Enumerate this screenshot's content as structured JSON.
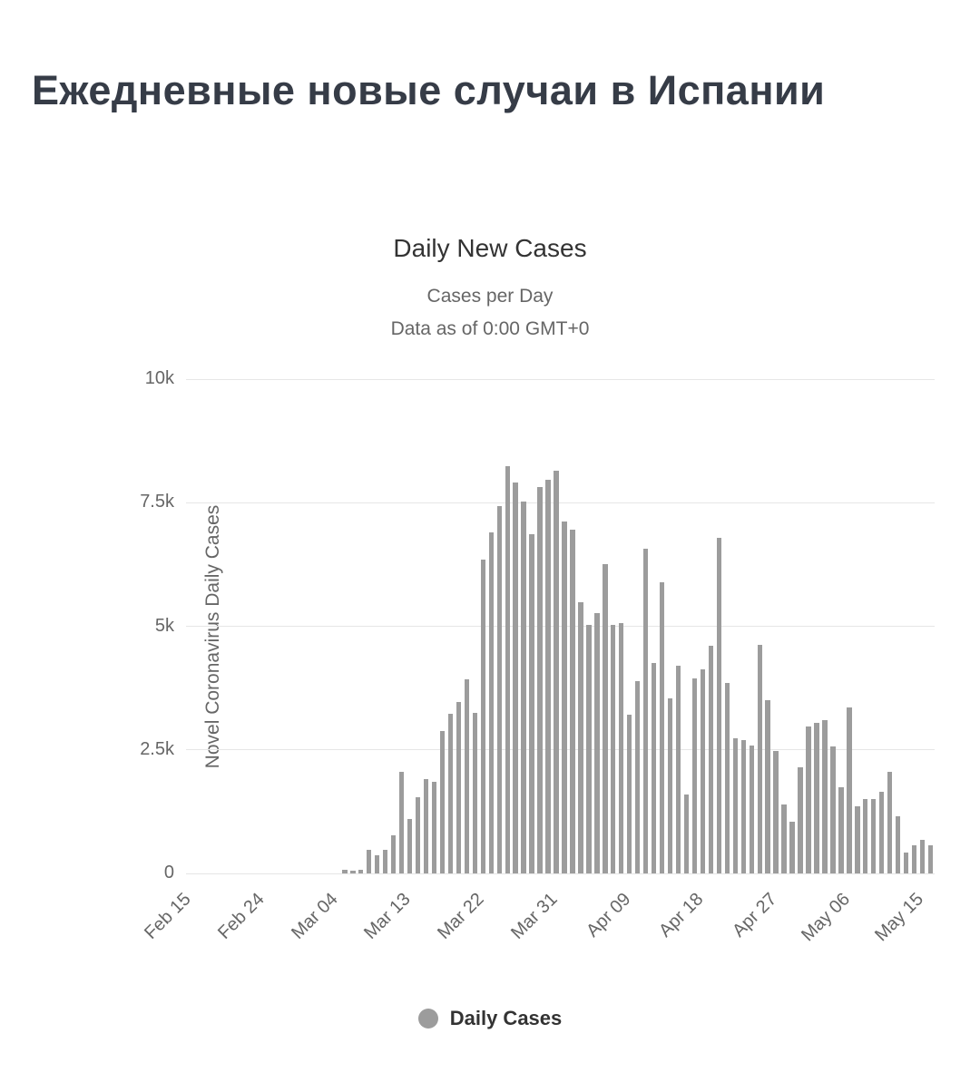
{
  "page": {
    "title": "Ежедневные новые случаи в Испании"
  },
  "chart": {
    "title": "Daily New Cases",
    "subtitle1": "Cases per Day",
    "subtitle2": "Data as of 0:00 GMT+0",
    "y_axis_title": "Novel Coronavirus Daily Cases",
    "legend_label": "Daily Cases"
  },
  "colors": {
    "bar": "#9c9c9c",
    "page_title": "#363c47",
    "chart_title": "#333333",
    "subtitle": "#666666",
    "axis_label": "#666666",
    "gridline": "#e6e6e6",
    "axis_line": "#ccd6eb",
    "legend_text": "#333333"
  },
  "chart_data": {
    "type": "bar",
    "title": "Daily New Cases",
    "subtitle": [
      "Cases per Day",
      "Data as of 0:00 GMT+0"
    ],
    "series_name": "Daily Cases",
    "xlabel": "",
    "ylabel": "Novel Coronavirus Daily Cases",
    "ylim": [
      0,
      10000
    ],
    "grid": true,
    "legend_position": "bottom",
    "bar_color": "#9c9c9c",
    "yticks": [
      {
        "value": 0,
        "label": "0"
      },
      {
        "value": 2500,
        "label": "2.5k"
      },
      {
        "value": 5000,
        "label": "5k"
      },
      {
        "value": 7500,
        "label": "7.5k"
      },
      {
        "value": 10000,
        "label": "10k"
      }
    ],
    "xtick_interval": 9,
    "xtick_labels": [
      "Feb 15",
      "Feb 24",
      "Mar 04",
      "Mar 13",
      "Mar 22",
      "Mar 31",
      "Apr 09",
      "Apr 18",
      "Apr 27",
      "May 06",
      "May 15"
    ],
    "categories": [
      "Feb 15",
      "Feb 16",
      "Feb 17",
      "Feb 18",
      "Feb 19",
      "Feb 20",
      "Feb 21",
      "Feb 22",
      "Feb 23",
      "Feb 24",
      "Feb 25",
      "Feb 26",
      "Feb 27",
      "Feb 28",
      "Feb 29",
      "Mar 01",
      "Mar 02",
      "Mar 03",
      "Mar 04",
      "Mar 05",
      "Mar 06",
      "Mar 07",
      "Mar 08",
      "Mar 09",
      "Mar 10",
      "Mar 11",
      "Mar 12",
      "Mar 13",
      "Mar 14",
      "Mar 15",
      "Mar 16",
      "Mar 17",
      "Mar 18",
      "Mar 19",
      "Mar 20",
      "Mar 21",
      "Mar 22",
      "Mar 23",
      "Mar 24",
      "Mar 25",
      "Mar 26",
      "Mar 27",
      "Mar 28",
      "Mar 29",
      "Mar 30",
      "Mar 31",
      "Apr 01",
      "Apr 02",
      "Apr 03",
      "Apr 04",
      "Apr 05",
      "Apr 06",
      "Apr 07",
      "Apr 08",
      "Apr 09",
      "Apr 10",
      "Apr 11",
      "Apr 12",
      "Apr 13",
      "Apr 14",
      "Apr 15",
      "Apr 16",
      "Apr 17",
      "Apr 18",
      "Apr 19",
      "Apr 20",
      "Apr 21",
      "Apr 22",
      "Apr 23",
      "Apr 24",
      "Apr 25",
      "Apr 26",
      "Apr 27",
      "Apr 28",
      "Apr 29",
      "Apr 30",
      "May 01",
      "May 02",
      "May 03",
      "May 04",
      "May 05",
      "May 06",
      "May 07",
      "May 08",
      "May 09",
      "May 10",
      "May 11",
      "May 12",
      "May 13",
      "May 14",
      "May 15",
      "May 16"
    ],
    "values": [
      0,
      0,
      0,
      0,
      0,
      0,
      0,
      0,
      0,
      0,
      0,
      0,
      0,
      0,
      0,
      0,
      0,
      0,
      0,
      70,
      50,
      70,
      480,
      375,
      480,
      780,
      2050,
      1100,
      1550,
      1900,
      1850,
      2880,
      3230,
      3460,
      3920,
      3240,
      6340,
      6900,
      7440,
      8240,
      7910,
      7520,
      6870,
      7820,
      7960,
      8150,
      7120,
      6950,
      5490,
      5020,
      5270,
      6250,
      5020,
      5070,
      3210,
      3890,
      6570,
      4260,
      5890,
      3550,
      4210,
      1600,
      3950,
      4130,
      4600,
      6790,
      3850,
      2740,
      2700,
      2590,
      4620,
      3500,
      2480,
      1400,
      1050,
      2140,
      2980,
      3040,
      3110,
      2560,
      1740,
      3350,
      1350,
      1500,
      1500,
      1650,
      2050,
      1150,
      420,
      560,
      680,
      560
    ]
  }
}
